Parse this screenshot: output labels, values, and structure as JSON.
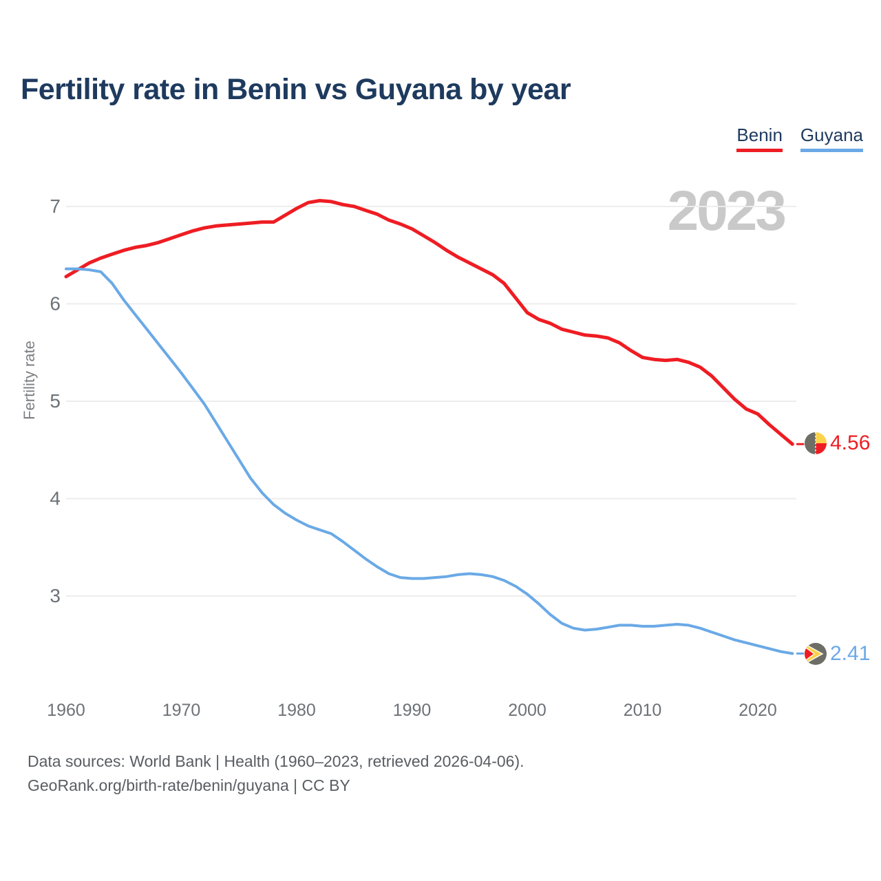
{
  "title": "Fertility rate in Benin vs Guyana by year",
  "legend": {
    "items": [
      {
        "label": "Benin",
        "color": "#ee1d23"
      },
      {
        "label": "Guyana",
        "color": "#6aa9e6"
      }
    ]
  },
  "watermark": "2023",
  "footer": {
    "line1": "Data sources: World Bank | Health (1960–2023, retrieved 2026-04-06).",
    "line2": "GeoRank.org/birth-rate/benin/guyana | CC BY"
  },
  "end_markers": {
    "benin": {
      "value_label": "4.56",
      "flag": "benin-flag-icon"
    },
    "guyana": {
      "value_label": "2.41",
      "flag": "guyana-flag-icon"
    }
  },
  "chart_data": {
    "type": "line",
    "title": "Fertility rate in Benin vs Guyana by year",
    "xlabel": "",
    "ylabel": "Fertility rate",
    "x": [
      1960,
      1961,
      1962,
      1963,
      1964,
      1965,
      1966,
      1967,
      1968,
      1969,
      1970,
      1971,
      1972,
      1973,
      1974,
      1975,
      1976,
      1977,
      1978,
      1979,
      1980,
      1981,
      1982,
      1983,
      1984,
      1985,
      1986,
      1987,
      1988,
      1989,
      1990,
      1991,
      1992,
      1993,
      1994,
      1995,
      1996,
      1997,
      1998,
      1999,
      2000,
      2001,
      2002,
      2003,
      2004,
      2005,
      2006,
      2007,
      2008,
      2009,
      2010,
      2011,
      2012,
      2013,
      2014,
      2015,
      2016,
      2017,
      2018,
      2019,
      2020,
      2021,
      2022,
      2023
    ],
    "series": [
      {
        "name": "Benin",
        "color": "#ee1d23",
        "end_label": "4.56",
        "last_value": 4.56,
        "values": [
          6.28,
          6.35,
          6.42,
          6.47,
          6.51,
          6.55,
          6.58,
          6.6,
          6.63,
          6.67,
          6.71,
          6.75,
          6.78,
          6.8,
          6.81,
          6.82,
          6.83,
          6.84,
          6.84,
          6.91,
          6.98,
          7.04,
          7.06,
          7.05,
          7.02,
          7.0,
          6.96,
          6.92,
          6.86,
          6.82,
          6.77,
          6.7,
          6.63,
          6.55,
          6.48,
          6.42,
          6.36,
          6.3,
          6.21,
          6.06,
          5.91,
          5.84,
          5.8,
          5.74,
          5.71,
          5.68,
          5.67,
          5.65,
          5.6,
          5.52,
          5.45,
          5.43,
          5.42,
          5.43,
          5.4,
          5.35,
          5.26,
          5.14,
          5.02,
          4.92,
          4.87,
          4.76,
          4.66,
          4.56
        ]
      },
      {
        "name": "Guyana",
        "color": "#6aa9e6",
        "end_label": "2.41",
        "last_value": 2.41,
        "values": [
          6.36,
          6.36,
          6.35,
          6.33,
          6.21,
          6.04,
          5.89,
          5.74,
          5.59,
          5.44,
          5.29,
          5.13,
          4.97,
          4.78,
          4.59,
          4.4,
          4.21,
          4.06,
          3.94,
          3.85,
          3.78,
          3.72,
          3.68,
          3.64,
          3.56,
          3.47,
          3.38,
          3.3,
          3.23,
          3.19,
          3.18,
          3.18,
          3.19,
          3.2,
          3.22,
          3.23,
          3.22,
          3.2,
          3.16,
          3.1,
          3.02,
          2.92,
          2.81,
          2.72,
          2.67,
          2.65,
          2.66,
          2.68,
          2.7,
          2.7,
          2.69,
          2.69,
          2.7,
          2.71,
          2.7,
          2.67,
          2.63,
          2.59,
          2.55,
          2.52,
          2.49,
          2.46,
          2.43,
          2.41
        ]
      }
    ],
    "x_ticks": [
      1960,
      1970,
      1980,
      1990,
      2000,
      2010,
      2020
    ],
    "y_ticks": [
      3,
      4,
      5,
      6,
      7
    ],
    "xlim": [
      1960,
      2023
    ],
    "ylim": [
      2.2,
      7.2
    ],
    "grid": "horizontal",
    "legend_position": "top-right",
    "watermark": "2023",
    "colors": {
      "grid": "#ededed",
      "tick_label": "#6d7277",
      "title": "#1e3a5e",
      "watermark": "#c9c9c9",
      "footer": "#595d62"
    }
  }
}
